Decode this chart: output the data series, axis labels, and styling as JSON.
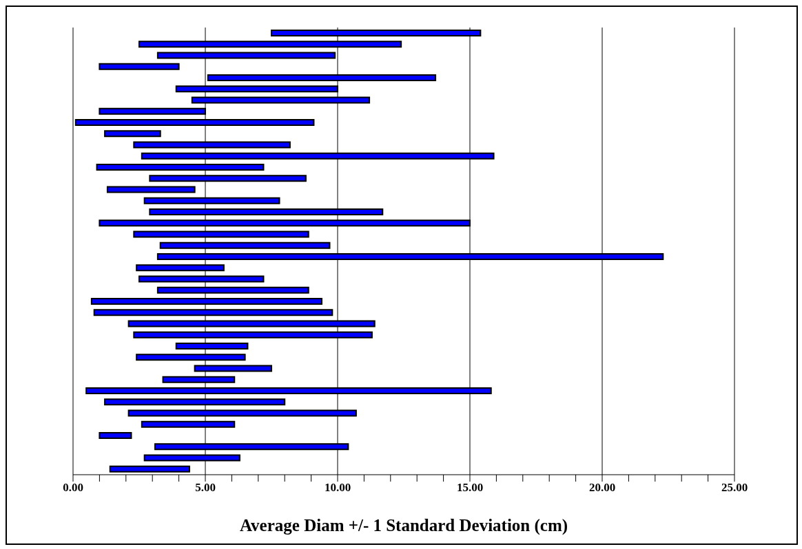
{
  "chart_data": {
    "type": "bar",
    "orientation": "horizontal",
    "xlabel": "Average Diam +/- 1 Standard Deviation (cm)",
    "categories": [
      null,
      null,
      null,
      null,
      null,
      null,
      null,
      null,
      null,
      null,
      null,
      null,
      null,
      null,
      null,
      null,
      null,
      null,
      null,
      null,
      null,
      null,
      null,
      null,
      null,
      null,
      null,
      null,
      null,
      null,
      null,
      null,
      null,
      null,
      null,
      null,
      null,
      null,
      null,
      null
    ],
    "base": [
      7.5,
      2.5,
      3.2,
      1.0,
      5.1,
      3.9,
      4.5,
      1.0,
      0.1,
      1.2,
      2.3,
      2.6,
      0.9,
      2.9,
      1.3,
      2.7,
      2.9,
      1.0,
      2.3,
      3.3,
      3.2,
      2.4,
      2.5,
      3.2,
      0.7,
      0.8,
      2.1,
      2.3,
      3.9,
      2.4,
      4.6,
      3.4,
      0.5,
      1.2,
      2.1,
      2.6,
      1.0,
      3.1,
      2.7,
      1.4
    ],
    "values": [
      7.9,
      9.9,
      6.7,
      3.0,
      8.6,
      6.1,
      6.7,
      4.0,
      9.0,
      2.1,
      5.9,
      13.3,
      6.3,
      5.9,
      3.3,
      5.1,
      8.8,
      14.0,
      6.6,
      6.4,
      19.1,
      3.3,
      4.7,
      5.7,
      8.7,
      9.0,
      9.3,
      9.0,
      2.7,
      4.1,
      2.9,
      2.7,
      15.3,
      6.8,
      8.6,
      3.5,
      1.2,
      7.3,
      3.6,
      3.0
    ],
    "color": "#0000ff",
    "xlim": [
      0,
      25
    ],
    "xticks": [
      {
        "value": 0,
        "label": "0.00"
      },
      {
        "value": 1,
        "label": null
      },
      {
        "value": 2,
        "label": null
      },
      {
        "value": 3,
        "label": null
      },
      {
        "value": 4,
        "label": null
      },
      {
        "value": 5,
        "label": "5.00"
      },
      {
        "value": 6,
        "label": null
      },
      {
        "value": 7,
        "label": null
      },
      {
        "value": 8,
        "label": null
      },
      {
        "value": 9,
        "label": null
      },
      {
        "value": 10,
        "label": "10.00"
      },
      {
        "value": 11,
        "label": null
      },
      {
        "value": 12,
        "label": null
      },
      {
        "value": 13,
        "label": null
      },
      {
        "value": 14,
        "label": null
      },
      {
        "value": 15,
        "label": "15.00"
      },
      {
        "value": 16,
        "label": null
      },
      {
        "value": 17,
        "label": null
      },
      {
        "value": 18,
        "label": null
      },
      {
        "value": 19,
        "label": null
      },
      {
        "value": 20,
        "label": "20.00"
      },
      {
        "value": 21,
        "label": null
      },
      {
        "value": 22,
        "label": null
      },
      {
        "value": 23,
        "label": null
      },
      {
        "value": 24,
        "label": null
      },
      {
        "value": 25,
        "label": "25.00"
      }
    ],
    "grid": "x",
    "legend": false
  }
}
